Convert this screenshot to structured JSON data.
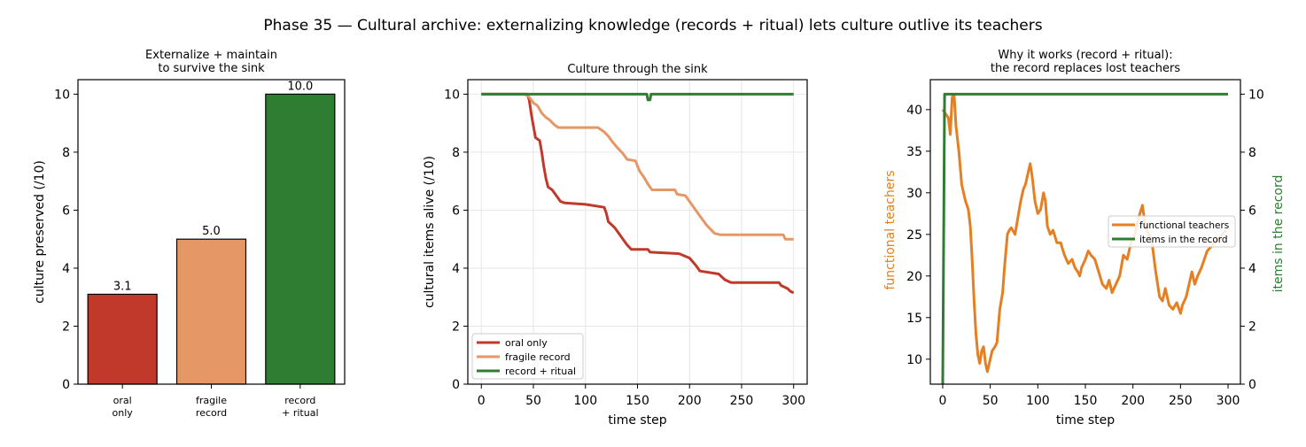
{
  "suptitle": "Phase 35 — Cultural archive: externalizing knowledge (records + ritual) lets culture outlive its teachers",
  "chart_data": [
    {
      "type": "bar",
      "title_lines": [
        "Externalize + maintain",
        "to survive the sink"
      ],
      "ylabel": "culture preserved (/10)",
      "ylim": [
        0,
        10.5
      ],
      "yticks": [
        0,
        2,
        4,
        6,
        8,
        10
      ],
      "grid": false,
      "categories": [
        [
          "oral",
          "only"
        ],
        [
          "fragile",
          "record"
        ],
        [
          "record",
          "+ ritual"
        ]
      ],
      "values": [
        3.1,
        5.0,
        10.0
      ],
      "value_labels": [
        "3.1",
        "5.0",
        "10.0"
      ],
      "colors": [
        "#c0392b",
        "#e59866",
        "#2e7d32"
      ]
    },
    {
      "type": "line",
      "title": "Culture through the sink",
      "xlabel": "time step",
      "ylabel": "cultural items alive (/10)",
      "xlim": [
        -13,
        313
      ],
      "ylim": [
        0,
        10.5
      ],
      "xticks": [
        0,
        50,
        100,
        150,
        200,
        250,
        300
      ],
      "yticks": [
        0,
        2,
        4,
        6,
        8,
        10
      ],
      "grid": true,
      "legend": "lower-left",
      "series": [
        {
          "name": "oral only",
          "color": "#c0392b",
          "points": [
            [
              0,
              10
            ],
            [
              44,
              10
            ],
            [
              46,
              9.8
            ],
            [
              48,
              9.3
            ],
            [
              50,
              8.9
            ],
            [
              52,
              8.5
            ],
            [
              56,
              8.4
            ],
            [
              58,
              8.0
            ],
            [
              60,
              7.5
            ],
            [
              62,
              7.1
            ],
            [
              64,
              6.8
            ],
            [
              68,
              6.7
            ],
            [
              72,
              6.5
            ],
            [
              76,
              6.3
            ],
            [
              80,
              6.25
            ],
            [
              100,
              6.2
            ],
            [
              118,
              6.1
            ],
            [
              120,
              5.9
            ],
            [
              122,
              5.6
            ],
            [
              128,
              5.4
            ],
            [
              132,
              5.2
            ],
            [
              136,
              5.0
            ],
            [
              140,
              4.8
            ],
            [
              144,
              4.65
            ],
            [
              160,
              4.65
            ],
            [
              162,
              4.55
            ],
            [
              190,
              4.5
            ],
            [
              200,
              4.35
            ],
            [
              206,
              4.1
            ],
            [
              210,
              3.9
            ],
            [
              228,
              3.8
            ],
            [
              234,
              3.6
            ],
            [
              240,
              3.5
            ],
            [
              286,
              3.5
            ],
            [
              288,
              3.4
            ],
            [
              294,
              3.3
            ],
            [
              297,
              3.2
            ],
            [
              300,
              3.15
            ]
          ]
        },
        {
          "name": "fragile record",
          "color": "#e59866",
          "points": [
            [
              0,
              10
            ],
            [
              42,
              10
            ],
            [
              46,
              9.9
            ],
            [
              50,
              9.7
            ],
            [
              54,
              9.6
            ],
            [
              58,
              9.35
            ],
            [
              62,
              9.2
            ],
            [
              66,
              9.1
            ],
            [
              70,
              8.95
            ],
            [
              74,
              8.85
            ],
            [
              112,
              8.85
            ],
            [
              118,
              8.7
            ],
            [
              122,
              8.55
            ],
            [
              126,
              8.35
            ],
            [
              132,
              8.1
            ],
            [
              136,
              7.95
            ],
            [
              140,
              7.75
            ],
            [
              148,
              7.7
            ],
            [
              152,
              7.35
            ],
            [
              156,
              7.15
            ],
            [
              160,
              6.9
            ],
            [
              164,
              6.7
            ],
            [
              186,
              6.7
            ],
            [
              188,
              6.55
            ],
            [
              196,
              6.5
            ],
            [
              202,
              6.2
            ],
            [
              208,
              5.9
            ],
            [
              212,
              5.7
            ],
            [
              216,
              5.5
            ],
            [
              220,
              5.35
            ],
            [
              224,
              5.2
            ],
            [
              230,
              5.15
            ],
            [
              290,
              5.15
            ],
            [
              292,
              5.0
            ],
            [
              300,
              5.0
            ]
          ]
        },
        {
          "name": "record + ritual",
          "color": "#2e7d32",
          "points": [
            [
              0,
              10
            ],
            [
              159,
              10
            ],
            [
              160,
              9.8
            ],
            [
              162,
              9.8
            ],
            [
              163,
              10
            ],
            [
              300,
              10
            ]
          ]
        }
      ]
    },
    {
      "type": "line",
      "title_lines": [
        "Why it works (record + ritual):",
        "the record replaces lost teachers"
      ],
      "xlabel": "time step",
      "ylabel_left": "functional teachers",
      "ylabel_right": "items in the record",
      "xlim": [
        -13,
        313
      ],
      "ylim_left": [
        7,
        43.6
      ],
      "ylim_right": [
        0,
        10.5
      ],
      "xticks": [
        0,
        50,
        100,
        150,
        200,
        250,
        300
      ],
      "yticks_left": [
        10,
        15,
        20,
        25,
        30,
        35,
        40
      ],
      "yticks_right": [
        0,
        2,
        4,
        6,
        8,
        10
      ],
      "grid": false,
      "legend": "center-right",
      "series": [
        {
          "name": "functional teachers",
          "axis": "left",
          "color": "#e67e22",
          "points": [
            [
              0,
              40
            ],
            [
              3,
              39.5
            ],
            [
              6,
              39
            ],
            [
              8,
              37
            ],
            [
              10,
              41.5
            ],
            [
              12,
              41.8
            ],
            [
              14,
              38
            ],
            [
              17,
              35
            ],
            [
              20,
              31
            ],
            [
              24,
              29
            ],
            [
              27,
              28
            ],
            [
              29,
              26
            ],
            [
              31,
              22
            ],
            [
              33,
              17
            ],
            [
              35,
              13
            ],
            [
              37,
              10.5
            ],
            [
              39,
              9.5
            ],
            [
              41,
              11
            ],
            [
              43,
              11.5
            ],
            [
              45,
              9.5
            ],
            [
              47,
              8.5
            ],
            [
              50,
              10
            ],
            [
              52,
              11
            ],
            [
              55,
              11.5
            ],
            [
              57,
              12
            ],
            [
              60,
              16
            ],
            [
              63,
              18
            ],
            [
              65,
              21
            ],
            [
              68,
              25
            ],
            [
              70,
              25.5
            ],
            [
              72,
              25.8
            ],
            [
              76,
              25
            ],
            [
              79,
              27
            ],
            [
              82,
              29
            ],
            [
              85,
              30.5
            ],
            [
              87,
              31
            ],
            [
              89,
              32
            ],
            [
              92,
              33.5
            ],
            [
              94,
              32
            ],
            [
              97,
              29
            ],
            [
              100,
              27.5
            ],
            [
              103,
              28
            ],
            [
              106,
              30
            ],
            [
              108,
              29
            ],
            [
              110,
              26
            ],
            [
              113,
              25
            ],
            [
              116,
              25.5
            ],
            [
              120,
              24
            ],
            [
              124,
              24
            ],
            [
              128,
              22.5
            ],
            [
              132,
              21.5
            ],
            [
              136,
              22
            ],
            [
              139,
              21
            ],
            [
              142,
              20.5
            ],
            [
              144,
              20
            ],
            [
              146,
              21
            ],
            [
              150,
              22
            ],
            [
              153,
              23
            ],
            [
              156,
              22.5
            ],
            [
              160,
              22
            ],
            [
              164,
              20.5
            ],
            [
              168,
              19
            ],
            [
              172,
              18.5
            ],
            [
              175,
              19.5
            ],
            [
              178,
              18
            ],
            [
              182,
              19
            ],
            [
              186,
              20
            ],
            [
              190,
              22.5
            ],
            [
              194,
              22
            ],
            [
              198,
              24
            ],
            [
              202,
              25
            ],
            [
              206,
              27
            ],
            [
              210,
              28.5
            ],
            [
              213,
              26
            ],
            [
              217,
              25
            ],
            [
              220,
              24
            ],
            [
              224,
              20.5
            ],
            [
              228,
              17.5
            ],
            [
              231,
              17
            ],
            [
              234,
              18.5
            ],
            [
              238,
              16.5
            ],
            [
              242,
              16
            ],
            [
              246,
              16.8
            ],
            [
              250,
              15.5
            ],
            [
              252,
              16.5
            ],
            [
              256,
              17.5
            ],
            [
              259,
              19
            ],
            [
              262,
              20.5
            ],
            [
              265,
              19
            ],
            [
              268,
              20
            ],
            [
              272,
              21
            ],
            [
              275,
              22
            ],
            [
              278,
              23
            ],
            [
              282,
              23.5
            ],
            [
              286,
              24
            ],
            [
              290,
              24.5
            ],
            [
              294,
              25
            ],
            [
              298,
              25.5
            ]
          ]
        },
        {
          "name": "items in the record",
          "axis": "right",
          "color": "#2e7d32",
          "points": [
            [
              0,
              0
            ],
            [
              2,
              10
            ],
            [
              300,
              10
            ]
          ]
        }
      ]
    }
  ]
}
